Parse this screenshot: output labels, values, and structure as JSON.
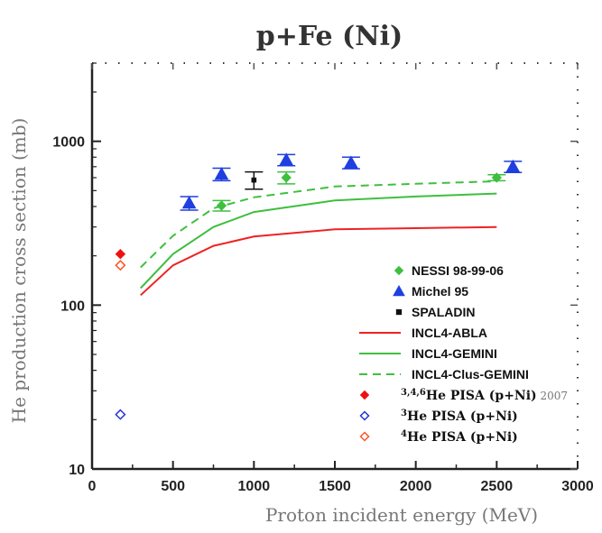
{
  "chart_data": {
    "type": "scatter",
    "title": "p+Fe (Ni)",
    "xlabel": "Proton incident energy (MeV)",
    "ylabel": "He production cross section (mb)",
    "xlim": [
      0,
      3000
    ],
    "ylim": [
      10,
      3000
    ],
    "yscale": "log",
    "xticks": [
      0,
      500,
      1000,
      1500,
      2000,
      2500,
      3000
    ],
    "yticks": [
      10,
      100,
      1000
    ],
    "legend_position": "bottom-right",
    "series": [
      {
        "name": "NESSI 98-99-06",
        "kind": "marker",
        "marker": "diamond",
        "color": "#3fbf3f",
        "points": [
          [
            800,
            405,
            30
          ],
          [
            1200,
            600,
            50
          ],
          [
            2500,
            600,
            25
          ]
        ]
      },
      {
        "name": "Michel 95",
        "kind": "marker",
        "marker": "triangle",
        "color": "#1f3fe0",
        "points": [
          [
            600,
            420,
            40
          ],
          [
            800,
            630,
            55
          ],
          [
            1200,
            770,
            60
          ],
          [
            1600,
            740,
            60
          ],
          [
            2600,
            700,
            55
          ]
        ]
      },
      {
        "name": "SPALADIN",
        "kind": "marker",
        "marker": "square",
        "color": "#111111",
        "points": [
          [
            1000,
            580,
            70
          ]
        ]
      },
      {
        "name": "INCL4-ABLA",
        "kind": "line",
        "dash": "solid",
        "color": "#ee2222",
        "points": [
          [
            300,
            115
          ],
          [
            500,
            175
          ],
          [
            750,
            230
          ],
          [
            1000,
            262
          ],
          [
            1500,
            290
          ],
          [
            2000,
            295
          ],
          [
            2500,
            300
          ]
        ]
      },
      {
        "name": "INCL4-GEMINI",
        "kind": "line",
        "dash": "solid",
        "color": "#3fbf3f",
        "points": [
          [
            300,
            127
          ],
          [
            500,
            205
          ],
          [
            750,
            300
          ],
          [
            1000,
            370
          ],
          [
            1500,
            435
          ],
          [
            2000,
            460
          ],
          [
            2500,
            480
          ]
        ]
      },
      {
        "name": "INCL4-Clus-GEMINI",
        "kind": "line",
        "dash": "dashed",
        "color": "#3fbf3f",
        "points": [
          [
            300,
            170
          ],
          [
            500,
            265
          ],
          [
            750,
            390
          ],
          [
            1000,
            455
          ],
          [
            1500,
            530
          ],
          [
            2000,
            550
          ],
          [
            2500,
            570
          ]
        ]
      },
      {
        "name": "3,4,6He PISA (p+Ni) 2007",
        "kind": "marker",
        "marker": "diamond",
        "color": "#ee1111",
        "points": [
          [
            175,
            205,
            0
          ]
        ]
      },
      {
        "name": "3He PISA (p+Ni)",
        "kind": "marker",
        "marker": "diamond-open",
        "color": "#2233dd",
        "points": [
          [
            175,
            21.5,
            0
          ]
        ]
      },
      {
        "name": "4He PISA (p+Ni)",
        "kind": "marker",
        "marker": "diamond-open",
        "color": "#ff5522",
        "points": [
          [
            175,
            175,
            0
          ]
        ]
      }
    ],
    "legend": [
      {
        "kind": "marker",
        "marker": "diamond",
        "color": "#3fbf3f",
        "style": "sans",
        "parts": [
          {
            "t": "NESSI 98-99-06"
          }
        ]
      },
      {
        "kind": "marker",
        "marker": "triangle",
        "color": "#1f3fe0",
        "style": "sans",
        "parts": [
          {
            "t": "Michel 95"
          }
        ]
      },
      {
        "kind": "marker",
        "marker": "square",
        "color": "#111111",
        "style": "sans",
        "parts": [
          {
            "t": "SPALADIN"
          }
        ]
      },
      {
        "kind": "line",
        "dash": "solid",
        "color": "#ee2222",
        "style": "sans",
        "parts": [
          {
            "t": "INCL4-ABLA"
          }
        ]
      },
      {
        "kind": "line",
        "dash": "solid",
        "color": "#3fbf3f",
        "style": "sans",
        "parts": [
          {
            "t": "INCL4-GEMINI"
          }
        ]
      },
      {
        "kind": "line",
        "dash": "dashed",
        "color": "#3fbf3f",
        "style": "sans",
        "parts": [
          {
            "t": "INCL4-Clus-GEMINI"
          }
        ]
      },
      {
        "kind": "marker",
        "marker": "diamond",
        "color": "#ee1111",
        "style": "serif",
        "parts": [
          {
            "t": "3,4,6",
            "sup": true
          },
          {
            "t": "He PISA (p+Ni)",
            "bold": true
          },
          {
            "t": " 2007",
            "small": true
          }
        ]
      },
      {
        "kind": "marker",
        "marker": "diamond-open",
        "color": "#2233dd",
        "style": "serif",
        "parts": [
          {
            "t": "3",
            "sup": true
          },
          {
            "t": "He PISA (p+Ni)",
            "bold": true
          }
        ]
      },
      {
        "kind": "marker",
        "marker": "diamond-open",
        "color": "#ff5522",
        "style": "serif",
        "parts": [
          {
            "t": "4",
            "sup": true
          },
          {
            "t": "He PISA (p+Ni)",
            "bold": true
          }
        ]
      }
    ]
  }
}
